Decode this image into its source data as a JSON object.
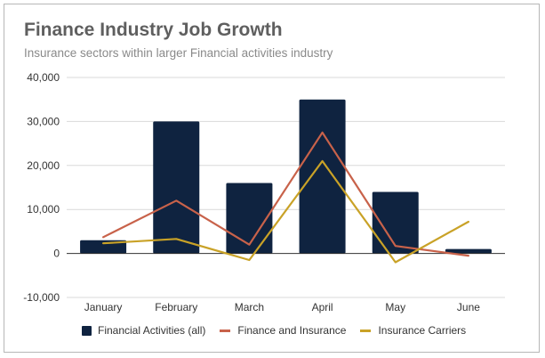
{
  "title": "Finance Industry Job Growth",
  "subtitle": "Insurance sectors within larger Financial activities industry",
  "colors": {
    "bar": "#0f2340",
    "finance": "#c8624a",
    "carriers": "#c9a227",
    "grid": "#d9d9d9",
    "zero": "#333333"
  },
  "chart_data": {
    "type": "bar",
    "title": "Finance Industry Job Growth",
    "subtitle": "Insurance sectors within larger Financial activities industry",
    "categories": [
      "January",
      "February",
      "March",
      "April",
      "May",
      "June"
    ],
    "ylim": [
      -10000,
      40000
    ],
    "yticks": [
      -10000,
      0,
      10000,
      20000,
      30000,
      40000
    ],
    "ytick_labels": [
      "-10,000",
      "0",
      "10,000",
      "20,000",
      "30,000",
      "40,000"
    ],
    "grid": true,
    "legend_position": "bottom",
    "series": [
      {
        "name": "Financial Activities (all)",
        "kind": "bar",
        "values": [
          3000,
          30000,
          16000,
          35000,
          14000,
          1000
        ]
      },
      {
        "name": "Finance and Insurance",
        "kind": "line",
        "values": [
          3700,
          12000,
          2000,
          27500,
          1700,
          -500
        ]
      },
      {
        "name": "Insurance Carriers",
        "kind": "line",
        "values": [
          2300,
          3300,
          -1500,
          21000,
          -2000,
          7200
        ]
      }
    ]
  }
}
